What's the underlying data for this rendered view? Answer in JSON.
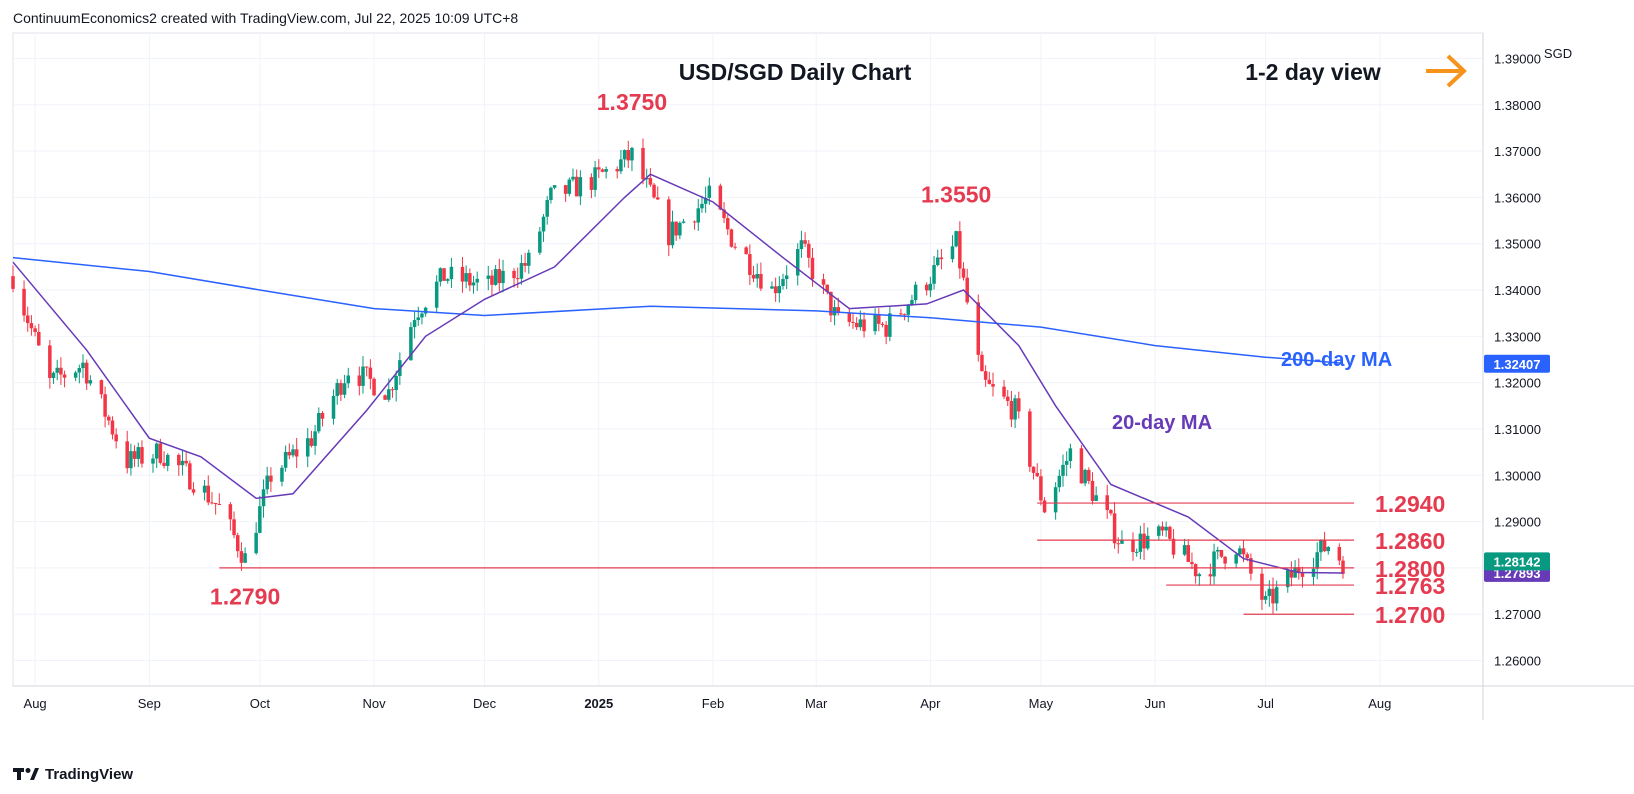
{
  "header": {
    "attribution": "ContinuumEconomics2 created with TradingView.com, Jul 22, 2025 10:09 UTC+8"
  },
  "footer": {
    "brand": "TradingView"
  },
  "colors": {
    "up": "#089981",
    "down": "#f23645",
    "ma200": "#2962ff",
    "ma20": "#673ab7",
    "level": "#e53b50",
    "arrow": "#f7931a",
    "grid": "#f0f3fa"
  },
  "chart_data": {
    "type": "candlestick",
    "title": "USD/SGD Daily Chart",
    "view_label": "1-2 day view",
    "view_icon": "arrow-right-icon",
    "currency": "SGD",
    "y_ticks": [
      "1.39000",
      "1.38000",
      "1.37000",
      "1.36000",
      "1.35000",
      "1.34000",
      "1.33000",
      "1.32000",
      "1.31000",
      "1.30000",
      "1.29000",
      "1.28000",
      "1.27000",
      "1.26000"
    ],
    "x_ticks": [
      "Aug",
      "Sep",
      "Oct",
      "Nov",
      "Dec",
      "2025",
      "Feb",
      "Mar",
      "Apr",
      "May",
      "Jun",
      "Jul",
      "Aug"
    ],
    "x_tick_dates": [
      "2024-08-01",
      "2024-09-01",
      "2024-10-01",
      "2024-11-01",
      "2024-12-01",
      "2025-01-01",
      "2025-02-01",
      "2025-03-01",
      "2025-04-01",
      "2025-05-01",
      "2025-06-01",
      "2025-07-01",
      "2025-08-01"
    ],
    "ylim": [
      1.2545,
      1.3955
    ],
    "xlim": [
      "2024-07-26",
      "2025-08-29"
    ],
    "last_price": "1.28142",
    "ma20_last": "1.27893",
    "ma200_last": "1.32407",
    "ma_labels": {
      "ma200": "200-day MA",
      "ma20": "20-day MA"
    },
    "annotations": [
      {
        "text": "1.3750",
        "x": "2025-01-10",
        "y": 1.375
      },
      {
        "text": "1.3550",
        "x": "2025-04-08",
        "y": 1.355
      },
      {
        "text": "1.2790",
        "x": "2024-09-27",
        "y": 1.279
      }
    ],
    "levels": [
      {
        "label": "1.2940",
        "value": 1.294,
        "from": "2025-04-30"
      },
      {
        "label": "1.2860",
        "value": 1.286,
        "from": "2025-04-30"
      },
      {
        "label": "1.2800",
        "value": 1.28,
        "from": "2024-09-20"
      },
      {
        "label": "1.2763",
        "value": 1.2763,
        "from": "2025-06-04"
      },
      {
        "label": "1.2700",
        "value": 1.27,
        "from": "2025-06-25"
      }
    ],
    "anchors": [
      [
        "2024-07-26",
        1.343
      ],
      [
        "2024-08-05",
        1.32
      ],
      [
        "2024-08-14",
        1.324
      ],
      [
        "2024-08-26",
        1.303
      ],
      [
        "2024-09-04",
        1.305
      ],
      [
        "2024-09-13",
        1.299
      ],
      [
        "2024-09-20",
        1.293
      ],
      [
        "2024-09-27",
        1.282
      ],
      [
        "2024-10-04",
        1.3
      ],
      [
        "2024-10-15",
        1.308
      ],
      [
        "2024-10-25",
        1.323
      ],
      [
        "2024-11-05",
        1.318
      ],
      [
        "2024-11-12",
        1.335
      ],
      [
        "2024-11-20",
        1.343
      ],
      [
        "2024-12-02",
        1.341
      ],
      [
        "2024-12-13",
        1.346
      ],
      [
        "2024-12-19",
        1.36
      ],
      [
        "2024-12-31",
        1.364
      ],
      [
        "2025-01-10",
        1.369
      ],
      [
        "2025-01-20",
        1.352
      ],
      [
        "2025-01-31",
        1.36
      ],
      [
        "2025-02-07",
        1.35
      ],
      [
        "2025-02-17",
        1.34
      ],
      [
        "2025-02-25",
        1.349
      ],
      [
        "2025-03-07",
        1.333
      ],
      [
        "2025-03-20",
        1.332
      ],
      [
        "2025-03-31",
        1.342
      ],
      [
        "2025-04-08",
        1.35
      ],
      [
        "2025-04-15",
        1.32
      ],
      [
        "2025-04-24",
        1.314
      ],
      [
        "2025-05-02",
        1.293
      ],
      [
        "2025-05-09",
        1.305
      ],
      [
        "2025-05-23",
        1.285
      ],
      [
        "2025-06-03",
        1.287
      ],
      [
        "2025-06-13",
        1.279
      ],
      [
        "2025-06-23",
        1.285
      ],
      [
        "2025-07-01",
        1.272
      ],
      [
        "2025-07-10",
        1.28
      ],
      [
        "2025-07-18",
        1.285
      ],
      [
        "2025-07-22",
        1.2814
      ]
    ],
    "ma200_path": [
      [
        "2024-07-26",
        1.347
      ],
      [
        "2024-09-01",
        1.344
      ],
      [
        "2024-10-01",
        1.34
      ],
      [
        "2024-11-01",
        1.336
      ],
      [
        "2024-12-01",
        1.3345
      ],
      [
        "2025-01-15",
        1.3365
      ],
      [
        "2025-03-01",
        1.3355
      ],
      [
        "2025-04-01",
        1.334
      ],
      [
        "2025-05-01",
        1.332
      ],
      [
        "2025-06-01",
        1.328
      ],
      [
        "2025-07-01",
        1.3255
      ],
      [
        "2025-07-22",
        1.3242
      ]
    ],
    "ma20_path": [
      [
        "2024-07-26",
        1.346
      ],
      [
        "2024-08-15",
        1.327
      ],
      [
        "2024-09-01",
        1.308
      ],
      [
        "2024-09-15",
        1.304
      ],
      [
        "2024-09-30",
        1.295
      ],
      [
        "2024-10-10",
        1.296
      ],
      [
        "2024-10-30",
        1.314
      ],
      [
        "2024-11-15",
        1.33
      ],
      [
        "2024-12-01",
        1.338
      ],
      [
        "2024-12-20",
        1.345
      ],
      [
        "2025-01-08",
        1.36
      ],
      [
        "2025-01-15",
        1.365
      ],
      [
        "2025-02-01",
        1.359
      ],
      [
        "2025-02-20",
        1.347
      ],
      [
        "2025-03-10",
        1.336
      ],
      [
        "2025-03-31",
        1.337
      ],
      [
        "2025-04-10",
        1.34
      ],
      [
        "2025-04-25",
        1.328
      ],
      [
        "2025-05-05",
        1.315
      ],
      [
        "2025-05-20",
        1.298
      ],
      [
        "2025-06-10",
        1.291
      ],
      [
        "2025-06-25",
        1.282
      ],
      [
        "2025-07-10",
        1.279
      ],
      [
        "2025-07-22",
        1.2789
      ]
    ]
  }
}
